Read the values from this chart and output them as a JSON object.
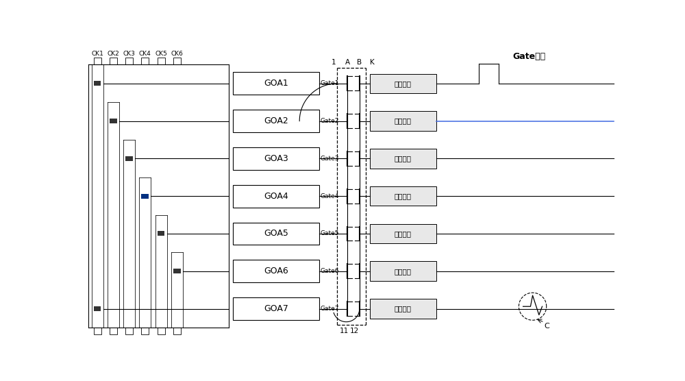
{
  "background_color": "#ffffff",
  "fig_width": 10.0,
  "fig_height": 5.56,
  "ck_labels": [
    "CK1",
    "CK2",
    "CK3",
    "CK4",
    "CK5",
    "CK6"
  ],
  "goa_labels": [
    "GOA1",
    "GOA2",
    "GOA3",
    "GOA4",
    "GOA5",
    "GOA6",
    "GOA7"
  ],
  "gate_labels": [
    "Gate1",
    "Gate2",
    "Gate3",
    "Gate4",
    "Gate5",
    "Gate6",
    "Gate7"
  ],
  "panel_label": "面板内部",
  "gate_wave_label": "Gate波形",
  "line_color": "#000000",
  "blue_line_color": "#4169e1",
  "panel_fill": "#e8e8e8",
  "dark_rect_color": "#333333",
  "dark_rect_blue": "#003080"
}
